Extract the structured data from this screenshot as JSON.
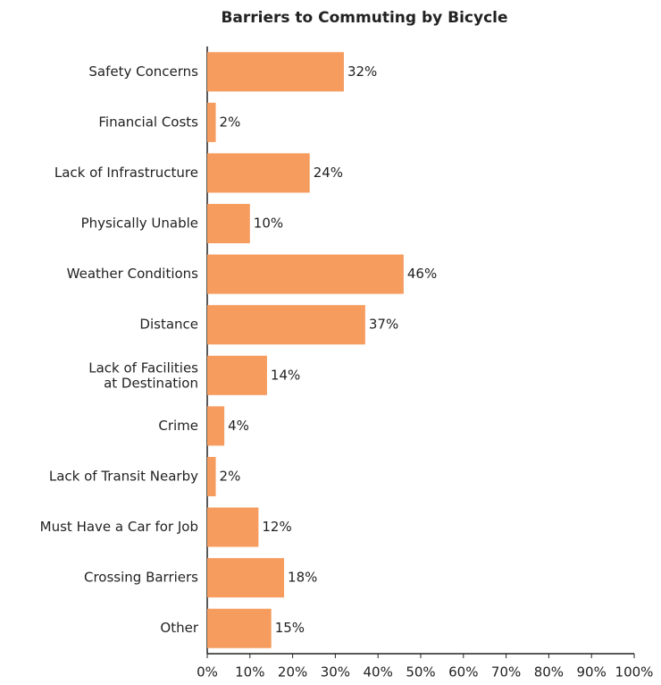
{
  "chart_data": {
    "type": "barh",
    "title": "Barriers to Commuting by Bicycle",
    "categories": [
      "Safety Concerns",
      "Financial Costs",
      "Lack of Infrastructure",
      "Physically Unable",
      "Weather Conditions",
      "Distance",
      "Lack of Facilities\nat Destination",
      "Crime",
      "Lack of Transit Nearby",
      "Must Have a Car for Job",
      "Crossing Barriers",
      "Other"
    ],
    "values": [
      32,
      2,
      24,
      10,
      46,
      37,
      14,
      4,
      2,
      12,
      18,
      15
    ],
    "value_labels": [
      "32%",
      "2%",
      "24%",
      "10%",
      "46%",
      "37%",
      "14%",
      "4%",
      "2%",
      "12%",
      "18%",
      "15%"
    ],
    "color": "#f59c5e",
    "xlim": [
      0,
      100
    ],
    "xticks": [
      {
        "value": 0,
        "label": "0%"
      },
      {
        "value": 10,
        "label": "10%"
      },
      {
        "value": 20,
        "label": "20%"
      },
      {
        "value": 30,
        "label": "30%"
      },
      {
        "value": 40,
        "label": "40%"
      },
      {
        "value": 50,
        "label": "50%"
      },
      {
        "value": 60,
        "label": "60%"
      },
      {
        "value": 70,
        "label": "70%"
      },
      {
        "value": 80,
        "label": "80%"
      },
      {
        "value": 90,
        "label": "90%"
      },
      {
        "value": 100,
        "label": "100%"
      }
    ]
  }
}
